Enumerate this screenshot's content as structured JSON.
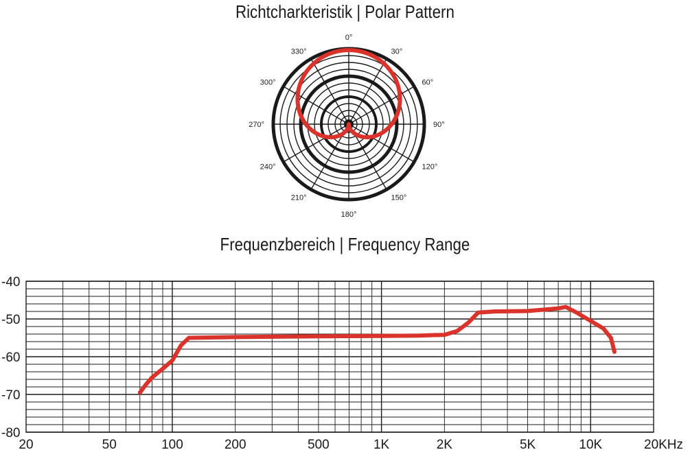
{
  "polar": {
    "title": "Richtcharkteristik | Polar Pattern",
    "angle_labels": [
      "0°",
      "30°",
      "60°",
      "90°",
      "120°",
      "150°",
      "180°",
      "210°",
      "240°",
      "270°",
      "300°",
      "330°"
    ]
  },
  "frequency": {
    "title": "Frequenzbereich | Frequency Range"
  },
  "colors": {
    "curve": "#d9332b",
    "grid": "#1a1a1a"
  },
  "chart_data": [
    {
      "type": "polar",
      "pattern": "cardioid",
      "angles_deg": [
        0,
        30,
        60,
        90,
        120,
        150,
        165,
        180,
        195,
        210,
        240,
        270,
        300,
        330
      ],
      "relative_response": [
        1.0,
        0.95,
        0.88,
        0.68,
        0.52,
        0.38,
        0.24,
        0.0,
        0.24,
        0.38,
        0.52,
        0.68,
        0.88,
        0.95
      ],
      "angle_labels": [
        "0°",
        "30°",
        "60°",
        "90°",
        "120°",
        "150°",
        "180°",
        "210°",
        "240°",
        "270°",
        "300°",
        "330°"
      ]
    },
    {
      "type": "line",
      "title": "Frequenzbereich | Frequency Range",
      "x_scale": "log",
      "xlim": [
        20,
        20000
      ],
      "ylim": [
        -80,
        -40
      ],
      "x_tick_values": [
        20,
        50,
        100,
        200,
        500,
        1000,
        2000,
        5000,
        10000,
        20000
      ],
      "x_tick_labels": [
        "20",
        "50",
        "100",
        "200",
        "500",
        "1K",
        "2K",
        "5K",
        "10K",
        "20KHz"
      ],
      "y_tick_values": [
        -40,
        -50,
        -60,
        -70,
        -80
      ],
      "y_tick_labels": [
        "-40",
        "-50",
        "-60",
        "-70",
        "-80"
      ],
      "grid": true,
      "x": [
        70,
        75,
        80,
        90,
        100,
        110,
        120,
        200,
        500,
        1000,
        1500,
        2000,
        2300,
        2600,
        2900,
        3500,
        5000,
        7000,
        7600,
        8500,
        10000,
        11500,
        12500,
        13000
      ],
      "y": [
        -69.5,
        -67.3,
        -65.5,
        -63.2,
        -61,
        -57,
        -55,
        -54.8,
        -54.6,
        -54.5,
        -54.4,
        -54.2,
        -53.2,
        -51,
        -48.3,
        -48,
        -47.9,
        -47.2,
        -46.8,
        -48.2,
        -50.5,
        -52.5,
        -55,
        -58.7
      ]
    }
  ]
}
